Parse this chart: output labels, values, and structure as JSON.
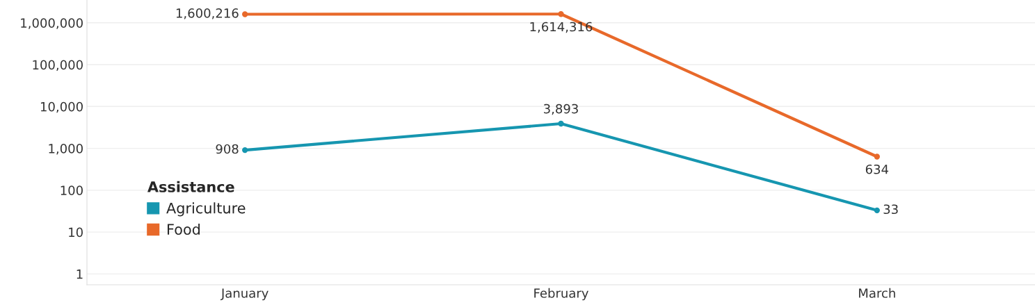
{
  "chart_data": {
    "type": "line",
    "categories": [
      "January",
      "February",
      "March"
    ],
    "series": [
      {
        "name": "Agriculture",
        "color": "#1696b0",
        "values": [
          908,
          3893,
          33
        ],
        "value_labels": [
          "908",
          "3,893",
          "33"
        ]
      },
      {
        "name": "Food",
        "color": "#e8692a",
        "values": [
          1600216,
          1614316,
          634
        ],
        "value_labels": [
          "1,600,216",
          "1,614,316",
          "634"
        ]
      }
    ],
    "log": true,
    "ylim": [
      0.55,
      3500000
    ],
    "yticks": [
      {
        "value": 1,
        "label": "1"
      },
      {
        "value": 10,
        "label": "10"
      },
      {
        "value": 100,
        "label": "100"
      },
      {
        "value": 1000,
        "label": "1,000"
      },
      {
        "value": 10000,
        "label": "10,000"
      },
      {
        "value": 100000,
        "label": "100,000"
      },
      {
        "value": 1000000,
        "label": "1,000,000"
      }
    ],
    "grid": "y",
    "legend": "bottom left",
    "legend_title": "Assistance",
    "marker": "circle",
    "line_style": "solid"
  }
}
